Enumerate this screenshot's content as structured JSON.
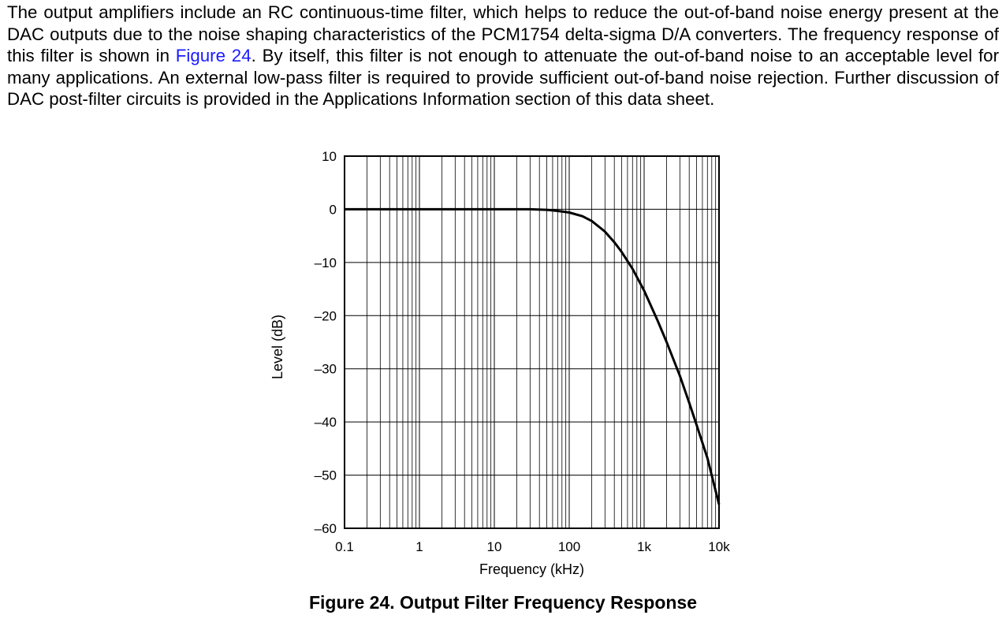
{
  "paragraph": {
    "text_before_link": "The output amplifiers include an RC continuous-time filter, which helps to reduce the out-of-band noise energy present at the DAC outputs due to the noise shaping characteristics of the PCM1754 delta-sigma D/A converters. The frequency response of this filter is shown in ",
    "link_text": "Figure 24",
    "text_after_link": ". By itself, this filter is not enough to attenuate the out-of-band noise to an acceptable level for many applications. An external low-pass filter is required to provide sufficient out-of-band noise rejection. Further discussion of DAC post-filter circuits is provided in the Applications Information section of this data sheet."
  },
  "caption": "Figure 24.  Output Filter Frequency Response",
  "colors": {
    "link": "#1a1aff",
    "curve": "#000000",
    "grid": "#000000"
  },
  "chart_data": {
    "type": "line",
    "title": "",
    "xlabel": "Frequency (kHz)",
    "ylabel": "Level (dB)",
    "x_scale": "log",
    "xlim": [
      0.1,
      10000
    ],
    "ylim": [
      -60,
      10
    ],
    "x_ticks": [
      {
        "value": 0.1,
        "label": "0.1"
      },
      {
        "value": 1,
        "label": "1"
      },
      {
        "value": 10,
        "label": "10"
      },
      {
        "value": 100,
        "label": "100"
      },
      {
        "value": 1000,
        "label": "1k"
      },
      {
        "value": 10000,
        "label": "10k"
      }
    ],
    "y_ticks": [
      {
        "value": 10,
        "label": "10"
      },
      {
        "value": 0,
        "label": "0"
      },
      {
        "value": -10,
        "label": "–10"
      },
      {
        "value": -20,
        "label": "–20"
      },
      {
        "value": -30,
        "label": "–30"
      },
      {
        "value": -40,
        "label": "–40"
      },
      {
        "value": -50,
        "label": "–50"
      },
      {
        "value": -60,
        "label": "–60"
      }
    ],
    "grid": true,
    "series": [
      {
        "x": [
          0.1,
          1,
          10,
          30,
          50,
          70,
          100,
          150,
          200,
          300,
          400,
          500,
          700,
          1000,
          1500,
          2000,
          3000,
          4000,
          5000,
          7000,
          10000
        ],
        "y": [
          0,
          0,
          0,
          0,
          -0.1,
          -0.3,
          -0.6,
          -1.3,
          -2.2,
          -4.2,
          -6.2,
          -8.0,
          -11.2,
          -15.3,
          -20.8,
          -25.0,
          -31.3,
          -36.4,
          -40.5,
          -46.8,
          -55.5
        ]
      }
    ]
  }
}
